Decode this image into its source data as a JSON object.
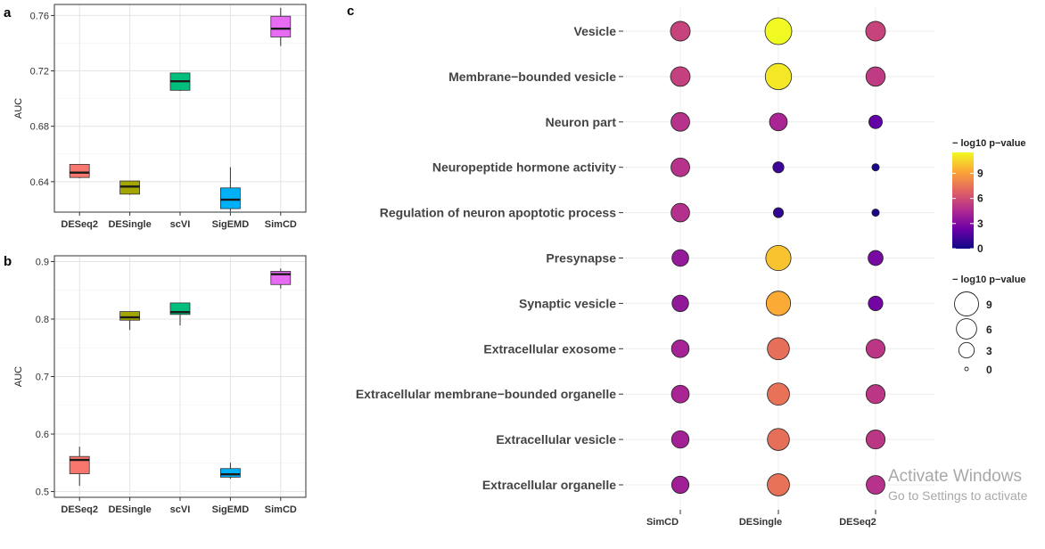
{
  "chart_data": [
    {
      "panel": "a",
      "type": "box",
      "ylabel": "AUC",
      "ylim": [
        0.618,
        0.768
      ],
      "yticks": [
        0.64,
        0.68,
        0.72,
        0.76
      ],
      "grid": true,
      "categories": [
        "DESeq2",
        "DESingle",
        "scVI",
        "SigEMD",
        "SimCD"
      ],
      "colors": [
        "#F8766D",
        "#A3A500",
        "#00BF7D",
        "#00B0F6",
        "#E76BF3"
      ],
      "boxes": [
        {
          "lower": 0.6425,
          "q1": 0.643,
          "median": 0.6465,
          "q3": 0.6525,
          "upper": 0.6525
        },
        {
          "lower": 0.6305,
          "q1": 0.631,
          "median": 0.6365,
          "q3": 0.6405,
          "upper": 0.6405
        },
        {
          "lower": 0.7055,
          "q1": 0.706,
          "median": 0.7125,
          "q3": 0.7185,
          "upper": 0.7185
        },
        {
          "lower": 0.6185,
          "q1": 0.6205,
          "median": 0.627,
          "q3": 0.6355,
          "upper": 0.6505
        },
        {
          "lower": 0.738,
          "q1": 0.7445,
          "median": 0.7505,
          "q3": 0.7595,
          "upper": 0.7655
        }
      ]
    },
    {
      "panel": "b",
      "type": "box",
      "ylabel": "AUC",
      "ylim": [
        0.49,
        0.91
      ],
      "yticks": [
        0.5,
        0.6,
        0.7,
        0.8,
        0.9
      ],
      "grid": true,
      "categories": [
        "DESeq2",
        "DESingle",
        "scVI",
        "SigEMD",
        "SimCD"
      ],
      "colors": [
        "#F8766D",
        "#A3A500",
        "#00BF7D",
        "#00B0F6",
        "#E76BF3"
      ],
      "boxes": [
        {
          "lower": 0.51,
          "q1": 0.531,
          "median": 0.555,
          "q3": 0.561,
          "upper": 0.578
        },
        {
          "lower": 0.781,
          "q1": 0.798,
          "median": 0.803,
          "q3": 0.813,
          "upper": 0.813
        },
        {
          "lower": 0.789,
          "q1": 0.808,
          "median": 0.812,
          "q3": 0.828,
          "upper": 0.828
        },
        {
          "lower": 0.522,
          "q1": 0.525,
          "median": 0.53,
          "q3": 0.54,
          "upper": 0.55
        },
        {
          "lower": 0.853,
          "q1": 0.86,
          "median": 0.878,
          "q3": 0.883,
          "upper": 0.888
        }
      ]
    },
    {
      "panel": "c",
      "type": "scatter",
      "x": [
        "SimCD",
        "DESingle",
        "DESeq2"
      ],
      "y": [
        "Vesicle",
        "Membrane−bounded vesicle",
        "Neuron part",
        "Neuropeptide hormone activity",
        "Regulation of neuron apoptotic process",
        "Presynapse",
        "Synaptic vesicle",
        "Extracellular exosome",
        "Extracellular membrane−bounded organelle",
        "Extracellular vesicle",
        "Extracellular organelle"
      ],
      "values": [
        [
          5.6,
          11.5,
          5.6
        ],
        [
          5.5,
          11.0,
          5.3
        ],
        [
          4.9,
          4.3,
          2.1
        ],
        [
          4.9,
          1.2,
          0.3
        ],
        [
          4.8,
          0.9,
          0.3
        ],
        [
          3.7,
          10.0,
          2.8
        ],
        [
          3.6,
          9.3,
          2.6
        ],
        [
          4.2,
          7.3,
          5.1
        ],
        [
          4.3,
          7.4,
          5.1
        ],
        [
          4.1,
          7.3,
          5.1
        ],
        [
          4.0,
          7.4,
          4.9
        ]
      ],
      "color_legend": {
        "title": "− log10 p−value",
        "ticks": [
          9,
          6,
          3,
          0
        ],
        "range": [
          0,
          11.5
        ]
      },
      "size_legend": {
        "title": "− log10 p−value",
        "ticks": [
          9,
          6,
          3,
          0
        ]
      },
      "grid": true
    }
  ],
  "panel_letters": {
    "a": "a",
    "b": "b",
    "c": "c"
  },
  "watermark": {
    "title": "Activate Windows",
    "subtitle": "Go to Settings to activate"
  }
}
